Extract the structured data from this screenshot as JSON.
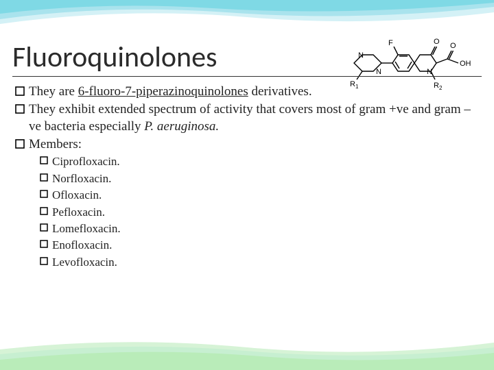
{
  "theme": {
    "wave_top_colors": [
      "#7fd9e5",
      "#a9e3ed",
      "#d4f1f6"
    ],
    "wave_bottom_colors": [
      "#b9ecb9",
      "#d6f3d6",
      "#c7efd1"
    ],
    "background": "#ffffff",
    "title_color": "#2b2b2b",
    "text_color": "#222222",
    "underline_color": "#333333",
    "bullet_square_size": 14,
    "sub_square_size": 12
  },
  "title": "Fluoroquinolones",
  "bullets": [
    {
      "prefix": "They are ",
      "mid_underline": "6-fluoro-7-piperazinoquinolones",
      "suffix": " derivatives."
    },
    {
      "html": "They exhibit extended spectrum of activity that covers most of gram +ve and gram –ve bacteria especially <span class=\"italic\">P. aeruginosa.</span>"
    },
    {
      "text": "Members:"
    }
  ],
  "members": [
    "Ciprofloxacin.",
    "Norfloxacin.",
    "Ofloxacin.",
    "Pefloxacin.",
    "Lomefloxacin.",
    "Enofloxacin.",
    "Levofloxacin."
  ],
  "chem_labels": {
    "F": "F",
    "O1": "O",
    "O2": "O",
    "OH": "OH",
    "N1": "N",
    "N2": "N",
    "N3": "N",
    "R1": "R",
    "R1_sub": "1",
    "R2": "R",
    "R2_sub": "2"
  }
}
